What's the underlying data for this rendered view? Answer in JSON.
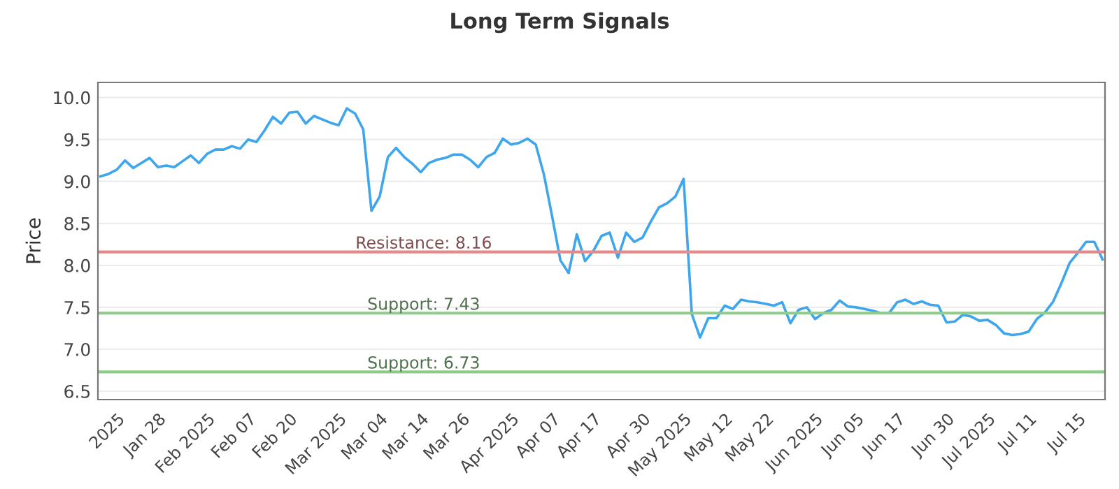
{
  "chart_data": {
    "type": "line",
    "title": "Long Term Signals",
    "ylabel": "Price",
    "categories": [
      null,
      null,
      "2025",
      null,
      null,
      null,
      null,
      "Jan 28",
      null,
      null,
      null,
      null,
      null,
      "Feb 2025",
      null,
      null,
      null,
      null,
      "Feb 07",
      null,
      null,
      null,
      null,
      "Feb 20",
      null,
      null,
      null,
      null,
      null,
      "Mar 2025",
      null,
      null,
      null,
      null,
      "Mar 04",
      null,
      null,
      null,
      null,
      "Mar 14",
      null,
      null,
      null,
      null,
      "Mar 26",
      null,
      null,
      null,
      null,
      null,
      "Apr 2025",
      null,
      null,
      null,
      null,
      "Apr 07",
      null,
      null,
      null,
      null,
      "Apr 17",
      null,
      null,
      null,
      null,
      null,
      "Apr 30",
      null,
      null,
      null,
      null,
      "May 2025",
      null,
      null,
      null,
      null,
      "May 12",
      null,
      null,
      null,
      null,
      "May 22",
      null,
      null,
      null,
      null,
      null,
      "Jun 2025",
      null,
      null,
      null,
      null,
      "Jun 05",
      null,
      null,
      null,
      null,
      "Jun 17",
      null,
      null,
      null,
      null,
      null,
      "Jun 30",
      null,
      null,
      null,
      null,
      "Jul 2025",
      null,
      null,
      null,
      null,
      "Jul 11",
      null,
      null,
      null,
      null,
      null,
      "Jul 15",
      null,
      null,
      null
    ],
    "series": [
      {
        "color": "#3ea6ec",
        "values": [
          9.06,
          9.09,
          9.14,
          9.25,
          9.16,
          9.22,
          9.28,
          9.17,
          9.19,
          9.17,
          9.24,
          9.31,
          9.22,
          9.33,
          9.38,
          9.38,
          9.42,
          9.39,
          9.5,
          9.47,
          9.61,
          9.77,
          9.69,
          9.82,
          9.83,
          9.69,
          9.78,
          9.74,
          9.7,
          9.67,
          9.87,
          9.81,
          9.62,
          8.65,
          8.82,
          9.29,
          9.4,
          9.29,
          9.21,
          9.11,
          9.22,
          9.26,
          9.28,
          9.32,
          9.32,
          9.26,
          9.17,
          9.29,
          9.34,
          9.51,
          9.44,
          9.46,
          9.51,
          9.44,
          9.08,
          8.58,
          8.06,
          7.91,
          8.37,
          8.05,
          8.17,
          8.35,
          8.39,
          8.09,
          8.39,
          8.28,
          8.33,
          8.52,
          8.69,
          8.74,
          8.82,
          9.03,
          7.42,
          7.14,
          7.37,
          7.37,
          7.52,
          7.48,
          7.59,
          7.57,
          7.56,
          7.54,
          7.52,
          7.56,
          7.31,
          7.47,
          7.5,
          7.36,
          7.43,
          7.47,
          7.58,
          7.51,
          7.5,
          7.48,
          7.46,
          7.43,
          7.43,
          7.56,
          7.59,
          7.54,
          7.57,
          7.53,
          7.52,
          7.32,
          7.33,
          7.41,
          7.39,
          7.34,
          7.35,
          7.29,
          7.19,
          7.17,
          7.18,
          7.21,
          7.36,
          7.44,
          7.57,
          7.79,
          8.03,
          8.15,
          8.28,
          8.28,
          8.07
        ]
      }
    ],
    "ylim": [
      6.4,
      10.18
    ],
    "yticks": [
      {
        "value": 6.5,
        "label": "6.5"
      },
      {
        "value": 7,
        "label": "7.0"
      },
      {
        "value": 7.5,
        "label": "7.5"
      },
      {
        "value": 8,
        "label": "8.0"
      },
      {
        "value": 8.5,
        "label": "8.5"
      },
      {
        "value": 9,
        "label": "9.0"
      },
      {
        "value": 9.5,
        "label": "9.5"
      },
      {
        "value": 10,
        "label": "10.0"
      }
    ],
    "grid": "y",
    "marker": "none",
    "line_style": "solid",
    "ref_lines": [
      {
        "axis": "y",
        "value": 8.16,
        "label": "Resistance: 8.16",
        "color": "#e58a8a"
      },
      {
        "axis": "y",
        "value": 7.43,
        "label": "Support: 7.43",
        "color": "#8fcc8a"
      },
      {
        "axis": "y",
        "value": 6.73,
        "label": "Support: 6.73",
        "color": "#8fcc8a"
      }
    ]
  }
}
